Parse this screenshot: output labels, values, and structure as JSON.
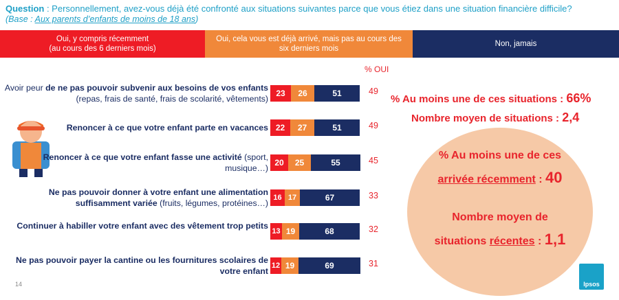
{
  "header": {
    "question_label": "Question",
    "question_text": " : Personnellement, avez-vous déjà été confronté aux situations suivantes parce que vous étiez dans une situation financière difficile?",
    "base_prefix": "(Base : ",
    "base_link": "Aux parents d’enfants de moins de 18 ans",
    "base_suffix": ")"
  },
  "legend": {
    "red": "Oui, y compris récemment\n(au cours des 6 derniers mois)",
    "orange": "Oui, cela vous est déjà arrivé, mais pas au cours des\nsix derniers mois",
    "navy": "Non, jamais"
  },
  "pct_header": "% OUI",
  "colors": {
    "red": "#ee1c25",
    "orange": "#f0883a",
    "navy": "#1b2d63",
    "accent": "#e8242c",
    "circle": "#f6c9a7"
  },
  "chart_data": {
    "type": "bar",
    "stacked": true,
    "orientation": "horizontal",
    "categories": [
      "Avoir peur de ne pas pouvoir subvenir aux besoins de vos enfants (repas, frais de santé, frais de scolarité, vêtements)",
      "Renoncer à ce que votre enfant parte en vacances",
      "Renoncer à ce que votre enfant fasse une activité (sport, musique…)",
      "Ne pas pouvoir donner à votre enfant une alimentation suffisamment variée (fruits, légumes, protéines…)",
      "Continuer à habiller votre enfant avec des vêtement trop petits",
      "Ne pas pouvoir payer la cantine ou les fournitures scolaires de votre enfant"
    ],
    "series": [
      {
        "name": "Oui, y compris récemment (au cours des 6 derniers mois)",
        "values": [
          23,
          22,
          20,
          16,
          13,
          12
        ]
      },
      {
        "name": "Oui, cela vous est déjà arrivé, mais pas au cours des six derniers mois",
        "values": [
          26,
          27,
          25,
          17,
          19,
          19
        ]
      },
      {
        "name": "Non, jamais",
        "values": [
          51,
          51,
          55,
          67,
          68,
          69
        ]
      }
    ],
    "totals_oui": [
      49,
      49,
      45,
      33,
      32,
      31
    ]
  },
  "rows": [
    {
      "pre": "Avoir peur ",
      "bold": "de ne pas pouvoir subvenir aux besoins de vos enfants",
      "post": " (repas, frais de santé, frais de scolarité, vêtements)"
    },
    {
      "pre": "",
      "bold": "Renoncer à ce que votre enfant parte en vacances",
      "post": ""
    },
    {
      "pre": "",
      "bold": "Renoncer à ce que votre enfant fasse une activité",
      "post": " (sport, musique…)"
    },
    {
      "pre": "",
      "bold": "Ne pas pouvoir donner à votre enfant une alimentation suffisamment variée",
      "post": " (fruits, légumes, protéines…)"
    },
    {
      "pre": "",
      "bold": "Continuer à habiller votre enfant avec des vêtement trop petits",
      "post": ""
    },
    {
      "pre": "",
      "bold": "Ne pas pouvoir payer la cantine ou les fournitures scolaires de votre enfant",
      "post": ""
    }
  ],
  "summary": {
    "line1_label": "% Au moins une de ces situations  : ",
    "line1_value": "66%",
    "line2_label": "Nombre moyen de situations : ",
    "line2_value": "2,4",
    "circle_line1": "% Au moins une de ces",
    "circle_line2_u": "arrivée récemment",
    "circle_line2_sep": " : ",
    "circle_line2_value": "40",
    "circle_line3": "Nombre moyen de",
    "circle_line4_pre": "situations ",
    "circle_line4_u": "récentes",
    "circle_line4_sep": " : ",
    "circle_line4_value": "1,1"
  },
  "footer": {
    "page_number": "14",
    "logo_text": "Ipsos"
  }
}
